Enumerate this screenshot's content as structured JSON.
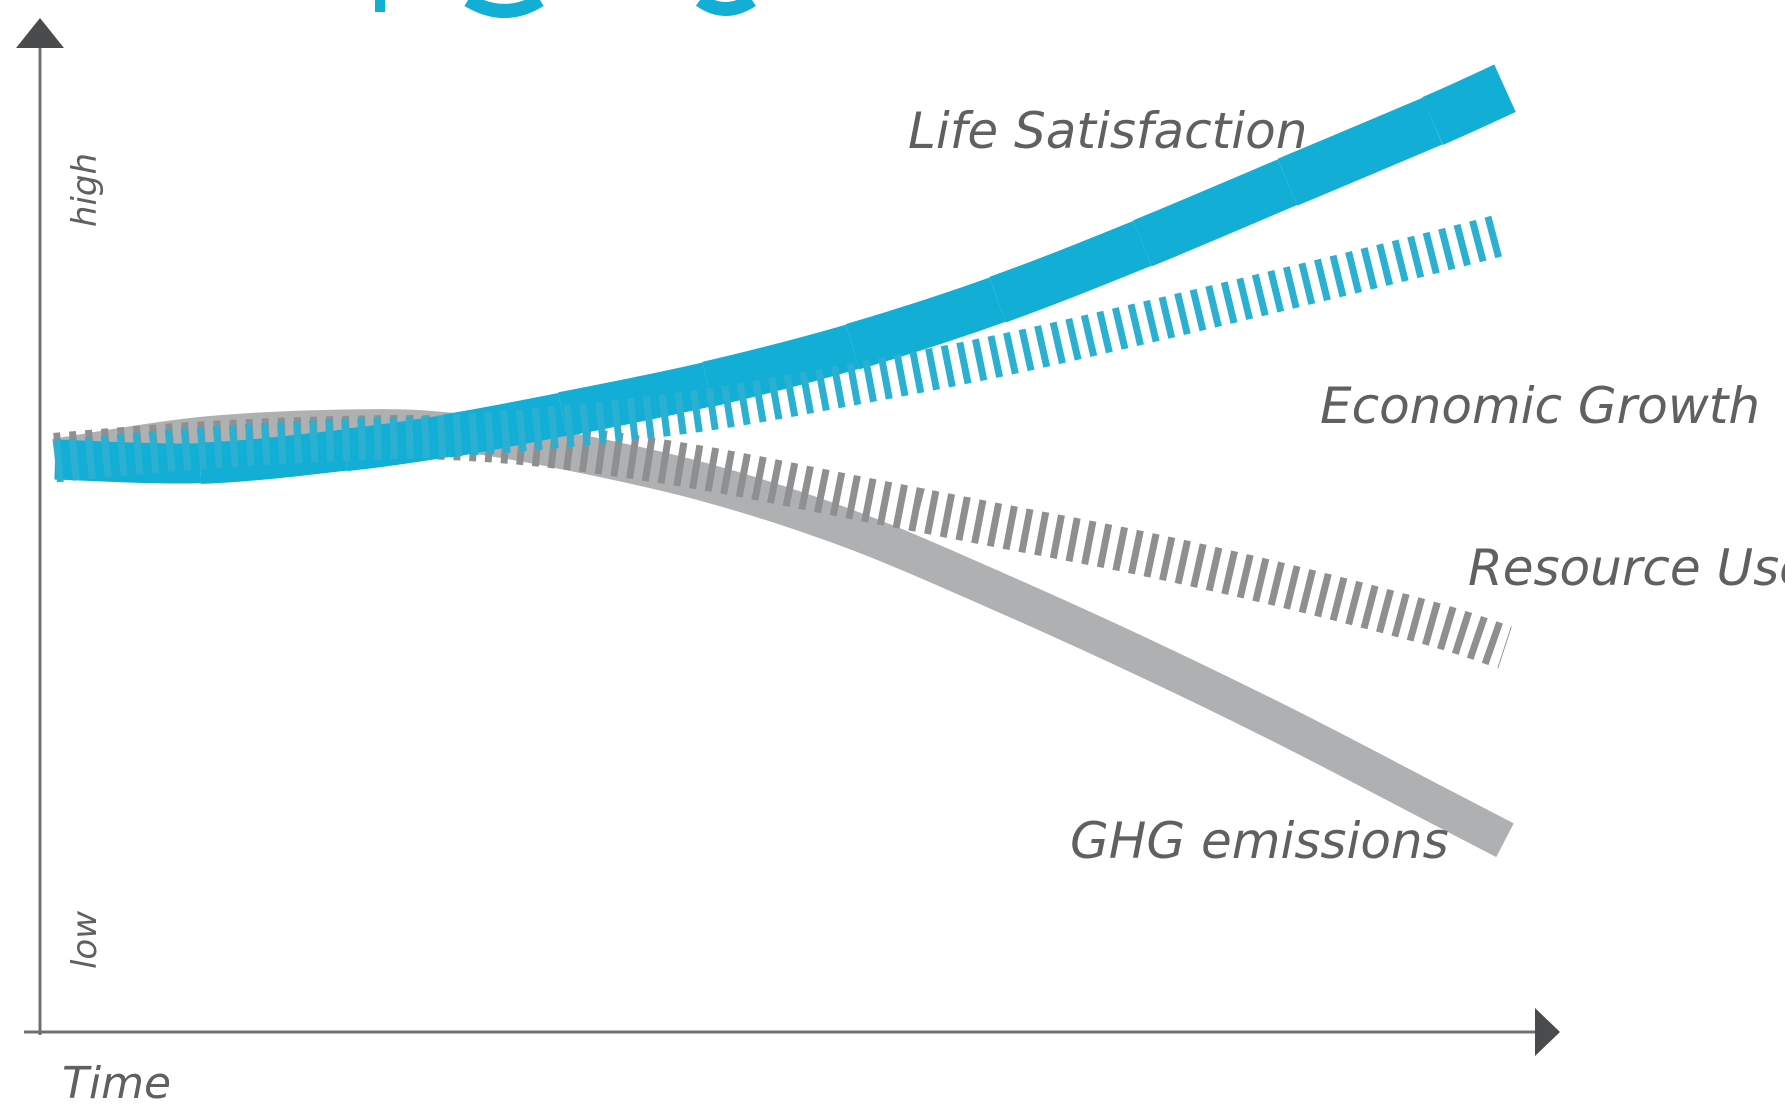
{
  "chart_data": {
    "type": "line",
    "title": "",
    "xlabel": "Time",
    "ylabel": "",
    "y_tick_labels": {
      "high": "high",
      "low": "low"
    },
    "xlim": [
      0,
      100
    ],
    "ylim": [
      0,
      100
    ],
    "grid": false,
    "legend": "none",
    "series": [
      {
        "name": "Life Satisfaction",
        "style": "solid",
        "color": "#12aed6",
        "x": [
          0,
          10,
          20,
          27,
          35,
          45,
          55,
          65,
          75,
          85,
          95,
          100
        ],
        "y": [
          57.5,
          57.1,
          58.5,
          60.0,
          62.3,
          65.5,
          69.5,
          74.5,
          80.5,
          87.0,
          93.5,
          97.0
        ]
      },
      {
        "name": "Economic Growth",
        "style": "dashed",
        "color": "#2bb0d2",
        "x": [
          0,
          10,
          20,
          27,
          35,
          45,
          55,
          65,
          75,
          85,
          95,
          100
        ],
        "y": [
          57.3,
          58.7,
          59.6,
          60.0,
          61.0,
          62.8,
          65.5,
          68.5,
          72.0,
          75.7,
          79.5,
          81.5
        ]
      },
      {
        "name": "Resource Use",
        "style": "dashed",
        "color": "#8e8f91",
        "x": [
          0,
          10,
          20,
          27,
          35,
          45,
          55,
          65,
          75,
          85,
          95,
          100
        ],
        "y": [
          58.0,
          59.2,
          59.8,
          59.8,
          58.8,
          56.5,
          53.5,
          50.5,
          47.5,
          44.0,
          40.0,
          37.5
        ]
      },
      {
        "name": "GHG emissions",
        "style": "solid",
        "color": "#aeb0b2",
        "x": [
          0,
          10,
          20,
          27,
          35,
          45,
          55,
          65,
          75,
          85,
          95,
          100
        ],
        "y": [
          57.7,
          60.0,
          60.8,
          60.5,
          58.5,
          55.0,
          50.0,
          43.5,
          36.5,
          29.0,
          21.0,
          17.0
        ]
      }
    ],
    "annotations": [
      {
        "text": "Life Satisfaction",
        "series": "Life Satisfaction"
      },
      {
        "text": "Economic Growth",
        "series": "Economic Growth"
      },
      {
        "text": "Resource Use",
        "series": "Resource Use"
      },
      {
        "text": "GHG emissions",
        "series": "GHG emissions"
      }
    ]
  }
}
